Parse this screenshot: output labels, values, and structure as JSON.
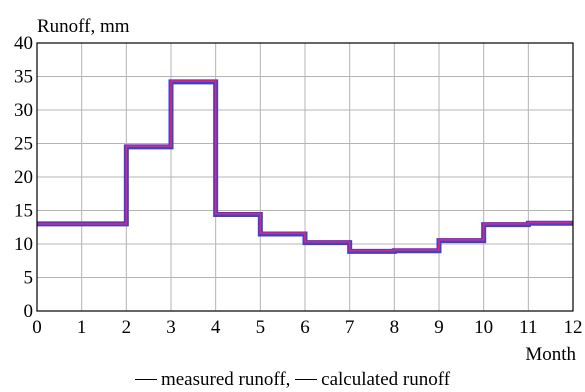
{
  "chart_data": {
    "type": "line",
    "step": true,
    "ylabel": "Runoff, mm",
    "xlabel": "Month",
    "xlim": [
      0,
      12
    ],
    "ylim": [
      0,
      40
    ],
    "xticks": [
      "0",
      "1",
      "2",
      "3",
      "4",
      "5",
      "6",
      "7",
      "8",
      "9",
      "10",
      "11",
      "12"
    ],
    "yticks": [
      "0",
      "5",
      "10",
      "15",
      "20",
      "25",
      "30",
      "35",
      "40"
    ],
    "grid": true,
    "legend": "bottom",
    "x": [
      0,
      1,
      2,
      3,
      4,
      5,
      6,
      7,
      8,
      9,
      10,
      11
    ],
    "series": [
      {
        "name": "measured runoff",
        "color": "#e8246e",
        "values": [
          13.0,
          13.0,
          24.6,
          34.3,
          14.5,
          11.6,
          10.3,
          9.0,
          9.1,
          10.6,
          13.0,
          13.2
        ]
      },
      {
        "name": "calculated runoff",
        "color": "#3f3fd0",
        "values": [
          13.0,
          13.0,
          24.5,
          34.2,
          14.4,
          11.5,
          10.2,
          8.9,
          9.0,
          10.5,
          12.9,
          13.1
        ]
      }
    ]
  }
}
